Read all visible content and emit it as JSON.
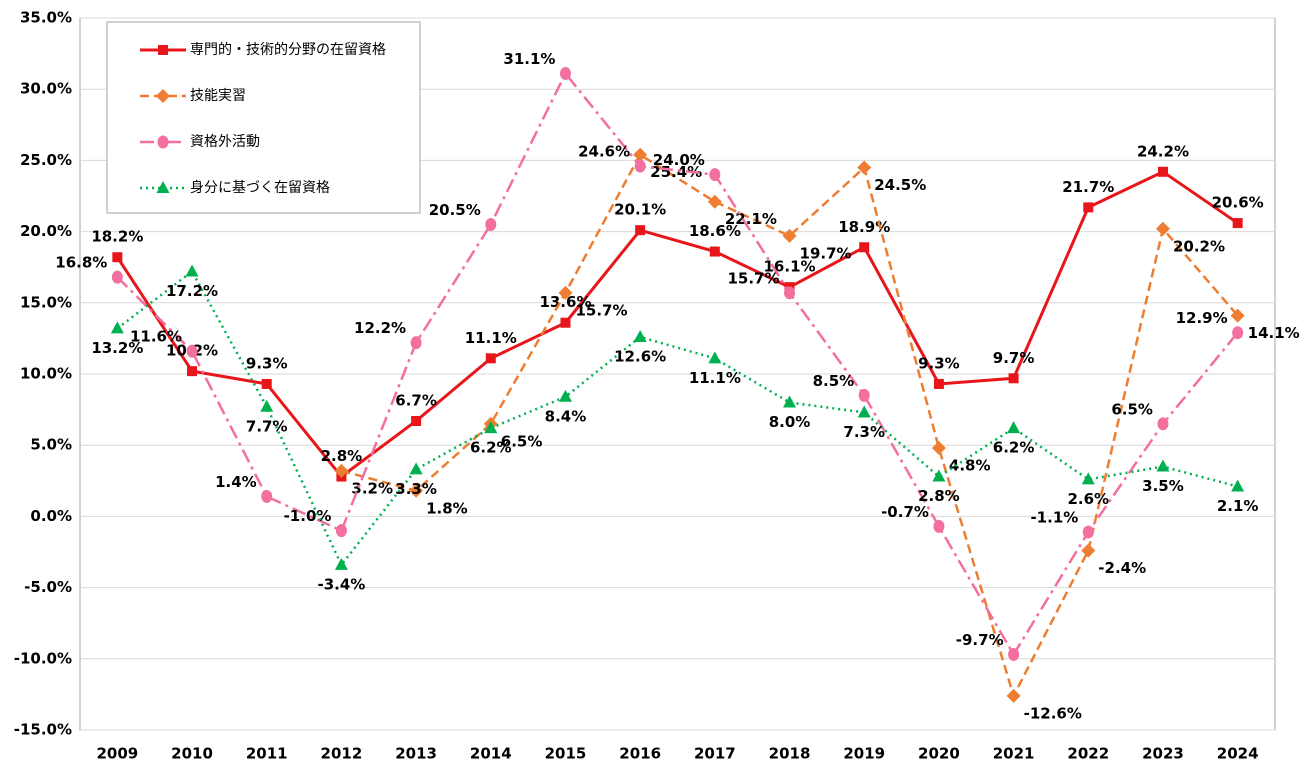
{
  "chart_data": {
    "type": "line",
    "categories": [
      "2009",
      "2010",
      "2011",
      "2012",
      "2013",
      "2014",
      "2015",
      "2016",
      "2017",
      "2018",
      "2019",
      "2020",
      "2021",
      "2022",
      "2023",
      "2024"
    ],
    "ylim": [
      -15,
      35
    ],
    "yticks": [
      {
        "value": -15,
        "label": "-15.0%"
      },
      {
        "value": -10,
        "label": "-10.0%"
      },
      {
        "value": -5,
        "label": "-5.0%"
      },
      {
        "value": 0,
        "label": "0.0%"
      },
      {
        "value": 5,
        "label": "5.0%"
      },
      {
        "value": 10,
        "label": "10.0%"
      },
      {
        "value": 15,
        "label": "15.0%"
      },
      {
        "value": 20,
        "label": "20.0%"
      },
      {
        "value": 25,
        "label": "25.0%"
      },
      {
        "value": 30,
        "label": "30.0%"
      },
      {
        "value": 35,
        "label": "35.0%"
      }
    ],
    "grid": true,
    "legend": "upper left",
    "series": [
      {
        "name": "専門的・技術的分野の在留資格",
        "color": "#e8161b",
        "marker": "square",
        "line_style": "solid",
        "values": [
          18.2,
          10.2,
          9.3,
          2.8,
          6.7,
          11.1,
          13.6,
          20.1,
          18.6,
          16.1,
          18.9,
          9.3,
          9.7,
          21.7,
          24.2,
          20.6
        ],
        "value_labels": [
          "18.2%",
          "10.2%",
          "9.3%",
          "2.8%",
          "6.7%",
          "11.1%",
          "13.6%",
          "20.1%",
          "18.6%",
          "16.1%",
          "18.9%",
          "9.3%",
          "9.7%",
          "21.7%",
          "24.2%",
          "20.6%"
        ]
      },
      {
        "name": "技能実習",
        "color": "#ed7d31",
        "marker": "diamond",
        "line_style": "dashed",
        "values": [
          null,
          null,
          null,
          3.2,
          1.8,
          6.5,
          15.7,
          25.4,
          22.1,
          19.7,
          24.5,
          4.8,
          -12.6,
          -2.4,
          20.2,
          14.1
        ],
        "value_labels": [
          null,
          null,
          null,
          "3.2%",
          "1.8%",
          "6.5%",
          "15.7%",
          "25.4%",
          "22.1%",
          "19.7%",
          "24.5%",
          "4.8%",
          "-12.6%",
          "-2.4%",
          "20.2%",
          "14.1%"
        ]
      },
      {
        "name": "資格外活動",
        "color": "#f26f9f",
        "marker": "circle",
        "line_style": "dashdot",
        "values": [
          16.8,
          11.6,
          1.4,
          -1.0,
          12.2,
          20.5,
          31.1,
          24.6,
          24.0,
          15.7,
          8.5,
          -0.7,
          -9.7,
          -1.1,
          6.5,
          12.9
        ],
        "value_labels": [
          "16.8%",
          "11.6%",
          "1.4%",
          "-1.0%",
          "12.2%",
          "20.5%",
          "31.1%",
          "24.6%",
          "24.0%",
          "15.7%",
          "8.5%",
          "-0.7%",
          "-9.7%",
          "-1.1%",
          "6.5%",
          "12.9%"
        ]
      },
      {
        "name": "身分に基づく在留資格",
        "color": "#00b050",
        "marker": "triangle",
        "line_style": "dotted",
        "values": [
          13.2,
          17.2,
          7.7,
          -3.4,
          3.3,
          6.2,
          8.4,
          12.6,
          11.1,
          8.0,
          7.3,
          2.8,
          6.2,
          2.6,
          3.5,
          2.1
        ],
        "value_labels": [
          "13.2%",
          "17.2%",
          "7.7%",
          "-3.4%",
          "3.3%",
          "6.2%",
          "8.4%",
          "12.6%",
          "11.1%",
          "8.0%",
          "7.3%",
          "2.8%",
          "6.2%",
          "2.6%",
          "3.5%",
          "2.1%"
        ]
      }
    ]
  }
}
